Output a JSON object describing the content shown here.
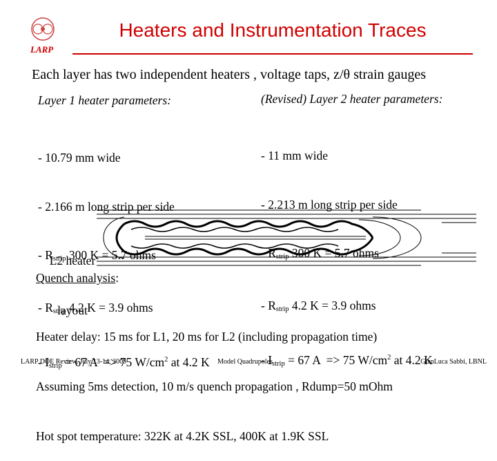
{
  "header": {
    "title": "Heaters and Instrumentation Traces",
    "logo": "LARP"
  },
  "subtitle": "Each layer has two independent heaters , voltage taps, z/θ strain gauges",
  "layer1": {
    "heading": "Layer 1 heater parameters:",
    "lines": [
      [
        "- 10.79 mm wide"
      ],
      [
        "- 2.166 m long strip per side"
      ],
      [
        "- R",
        "strip",
        " 300 K = 5.7 ohms"
      ],
      [
        "- R",
        "strip",
        " 4.2 K = 3.9 ohms"
      ],
      [
        "- I",
        "strip",
        " = 67 A  => 75 W/cm",
        "2",
        " at 4.2 K"
      ]
    ]
  },
  "layer2": {
    "heading": "(Revised) Layer 2 heater parameters:",
    "lines": [
      [
        "- 11 mm wide"
      ],
      [
        "- 2.213 m long strip per side"
      ],
      [
        "- R",
        "strip",
        " 300 K = 5.7 ohms"
      ],
      [
        "- R",
        "strip",
        " 4.2 K = 3.9 ohms"
      ],
      [
        "- I",
        "strip",
        " = 67 A  => 75 W/cm",
        "2",
        " at 4.2 K"
      ]
    ]
  },
  "figure": {
    "label": [
      "L2 heater",
      "layout"
    ]
  },
  "quench": {
    "heading": "Quench analysis",
    "colon": ":",
    "lines": [
      "Heater delay: 15 ms for L1, 20 ms for L2 (including propagation time)",
      "Assuming 5ms detection, 10 m/s quench propagation , Rdump=50 mOhm",
      "Hot spot temperature: 322K at 4.2K SSL, 400K at 1.9K SSL"
    ]
  },
  "footer": {
    "left": "LARP DOE Review, July 13-14, 2009",
    "center": "Model Quadrupoles",
    "right": "GianLuca Sabbi, LBNL"
  }
}
